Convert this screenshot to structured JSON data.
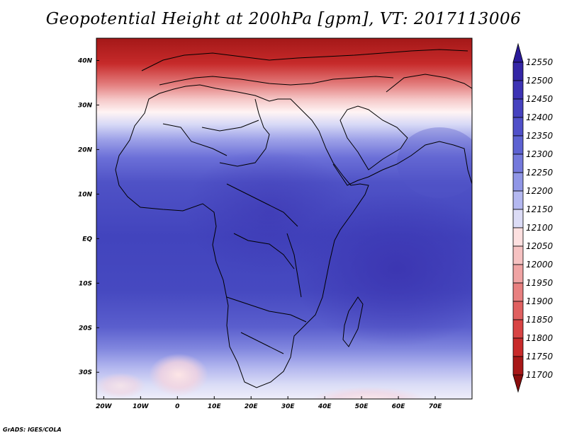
{
  "title": "Geopotential Height at 200hPa [gpm], VT: 2017113006",
  "credit": "GrADS: IGES/COLA",
  "map": {
    "lon_range": [
      -22,
      80
    ],
    "lat_range": [
      -36,
      45
    ],
    "lon_labels": [
      "20W",
      "10W",
      "0",
      "10E",
      "20E",
      "30E",
      "40E",
      "50E",
      "60E",
      "70E"
    ],
    "lat_labels": [
      "40N",
      "30N",
      "20N",
      "10N",
      "EQ",
      "10S",
      "20S",
      "30S"
    ]
  },
  "colorbar": {
    "levels": [
      "12550",
      "12500",
      "12450",
      "12400",
      "12350",
      "12300",
      "12250",
      "12200",
      "12150",
      "12100",
      "12050",
      "12000",
      "11950",
      "11900",
      "11850",
      "11800",
      "11750",
      "11700"
    ],
    "colors": [
      "#2a1a9a",
      "#3426a6",
      "#3d33b4",
      "#4642bf",
      "#5050c9",
      "#5d62d2",
      "#7479dc",
      "#9096e6",
      "#b4b8f0",
      "#dcdcf6",
      "#fde0e0",
      "#f6c2c2",
      "#f0a4a4",
      "#e88080",
      "#e06060",
      "#d84444",
      "#c82a2a",
      "#a81818",
      "#8a0e0e"
    ]
  }
}
